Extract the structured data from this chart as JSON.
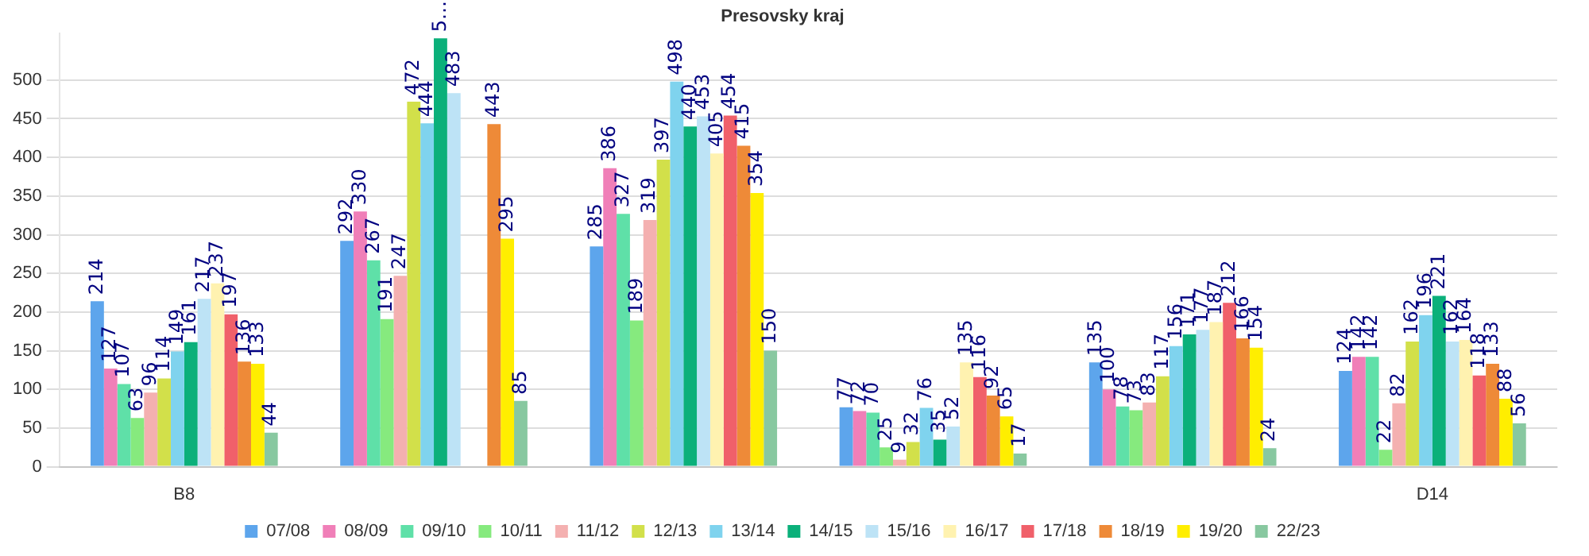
{
  "chart_data": {
    "type": "bar",
    "title": "Presovsky kraj",
    "categories": [
      "B8",
      null,
      null,
      null,
      null,
      "D14"
    ],
    "series": [
      {
        "name": "07/08",
        "color": "#5da5ec",
        "values": [
          214,
          292,
          285,
          77,
          135,
          124
        ],
        "value_labels": [
          "214",
          "292",
          "285",
          "77",
          "135",
          "124"
        ]
      },
      {
        "name": "08/09",
        "color": "#f07fb8",
        "values": [
          127,
          330,
          386,
          72,
          100,
          142
        ],
        "value_labels": [
          "127",
          "330",
          "386",
          "72",
          "100",
          "142"
        ]
      },
      {
        "name": "09/10",
        "color": "#5fe0a8",
        "values": [
          107,
          267,
          327,
          70,
          78,
          142
        ],
        "value_labels": [
          "107",
          "267",
          "327",
          "70",
          "78",
          "142"
        ]
      },
      {
        "name": "10/11",
        "color": "#86ea7e",
        "values": [
          63,
          191,
          189,
          25,
          73,
          22
        ],
        "value_labels": [
          "63",
          "191",
          "189",
          "25",
          "73",
          "22"
        ]
      },
      {
        "name": "11/12",
        "color": "#f4b0b0",
        "values": [
          96,
          247,
          319,
          9,
          83,
          82
        ],
        "value_labels": [
          "96",
          "247",
          "319",
          "9",
          "83",
          "82"
        ]
      },
      {
        "name": "12/13",
        "color": "#d2e04a",
        "values": [
          114,
          472,
          397,
          32,
          117,
          162
        ],
        "value_labels": [
          "114",
          "472",
          "397",
          "32",
          "117",
          "162"
        ]
      },
      {
        "name": "13/14",
        "color": "#7fd3ee",
        "values": [
          149,
          444,
          498,
          76,
          156,
          196
        ],
        "value_labels": [
          "149",
          "444",
          "498",
          "76",
          "156",
          "196"
        ]
      },
      {
        "name": "14/15",
        "color": "#0bb07a",
        "values": [
          161,
          554,
          440,
          35,
          171,
          221
        ],
        "value_labels": [
          "161",
          "5…",
          "440",
          "35",
          "171",
          "221"
        ]
      },
      {
        "name": "15/16",
        "color": "#bde3f6",
        "values": [
          217,
          483,
          453,
          52,
          177,
          162
        ],
        "value_labels": [
          "217",
          "483",
          "453",
          "52",
          "177",
          "162"
        ]
      },
      {
        "name": "16/17",
        "color": "#fff2b0",
        "values": [
          237,
          null,
          405,
          135,
          187,
          164
        ],
        "value_labels": [
          "237",
          null,
          "405",
          "135",
          "187",
          "164"
        ]
      },
      {
        "name": "17/18",
        "color": "#f0606a",
        "values": [
          197,
          null,
          454,
          116,
          212,
          118
        ],
        "value_labels": [
          "197",
          null,
          "454",
          "116",
          "212",
          "118"
        ]
      },
      {
        "name": "18/19",
        "color": "#ee8a38",
        "values": [
          136,
          443,
          415,
          92,
          166,
          133
        ],
        "value_labels": [
          "136",
          "443",
          "415",
          "92",
          "166",
          "133"
        ]
      },
      {
        "name": "19/20",
        "color": "#ffee00",
        "values": [
          133,
          295,
          354,
          65,
          154,
          88
        ],
        "value_labels": [
          "133",
          "295",
          "354",
          "65",
          "154",
          "88"
        ]
      },
      {
        "name": "22/23",
        "color": "#88c8a0",
        "values": [
          44,
          85,
          150,
          17,
          24,
          56
        ],
        "value_labels": [
          "44",
          "85",
          "150",
          "17",
          "24",
          "56"
        ]
      }
    ],
    "ylim": [
      0,
      560
    ],
    "yticks": [
      0,
      50,
      100,
      150,
      200,
      250,
      300,
      350,
      400,
      450,
      500
    ],
    "grid": "y",
    "legend": "bottom"
  }
}
